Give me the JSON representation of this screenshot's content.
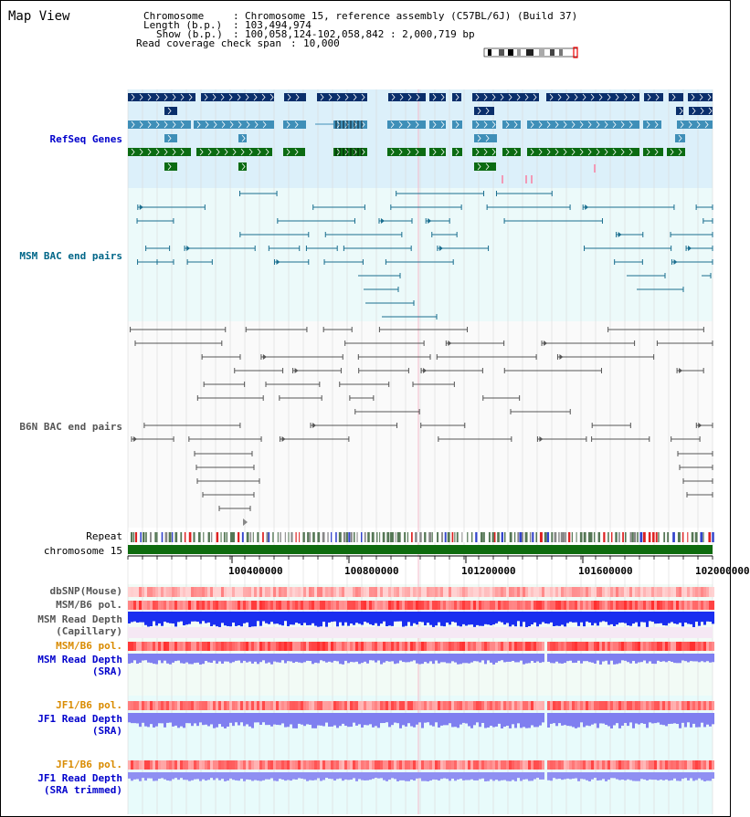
{
  "header": {
    "title": "Map View",
    "chromosome_label": "Chromosome",
    "chromosome_value": "Chromosome 15, reference assembly (C57BL/6J) (Build 37)",
    "length_label": "Length (b.p.)",
    "length_value": "103,494,974",
    "show_label": "Show (b.p.)",
    "show_value": "100,058,124-102,058,842 : 2,000,719 bp",
    "coverage_label": "Read coverage check span",
    "coverage_value": "10,000"
  },
  "tracks": {
    "refseq": "RefSeq Genes",
    "msm_bac": "MSM BAC end pairs",
    "b6n_bac": "B6N BAC end pairs",
    "repeat": "Repeat",
    "chromosome": "chromosome 15",
    "dbsnp": "dbSNP(Mouse)",
    "msm_b6_pol": "MSM/B6 pol.",
    "msm_depth_cap_1": "MSM Read Depth",
    "msm_depth_cap_2": "(Capillary)",
    "msm_b6_pol_2": "MSM/B6 pol.",
    "msm_depth_sra_1": "MSM Read Depth",
    "msm_depth_sra_2": "(SRA)",
    "jf1_b6_pol": "JF1/B6 pol.",
    "jf1_depth_sra_1": "JF1 Read Depth",
    "jf1_depth_sra_2": "(SRA)",
    "jf1_b6_pol_2": "JF1/B6 pol.",
    "jf1_depth_trim_1": "JF1 Read Depth",
    "jf1_depth_trim_2": "(SRA trimmed)"
  },
  "axis": {
    "ticks": [
      "100400000",
      "100800000",
      "101200000",
      "101600000",
      "102000000"
    ]
  },
  "colors": {
    "refseq_dark": "#0a2f6b",
    "refseq_mid": "#3f8fb8",
    "refseq_green": "#0b6b12",
    "msm_bac": "#1a6e8f",
    "b6n_bac": "#555555",
    "label_blue": "#0000cc",
    "label_orange": "#d98b00",
    "label_teal": "#006688",
    "chromosome_bar": "#0e6b0e"
  }
}
